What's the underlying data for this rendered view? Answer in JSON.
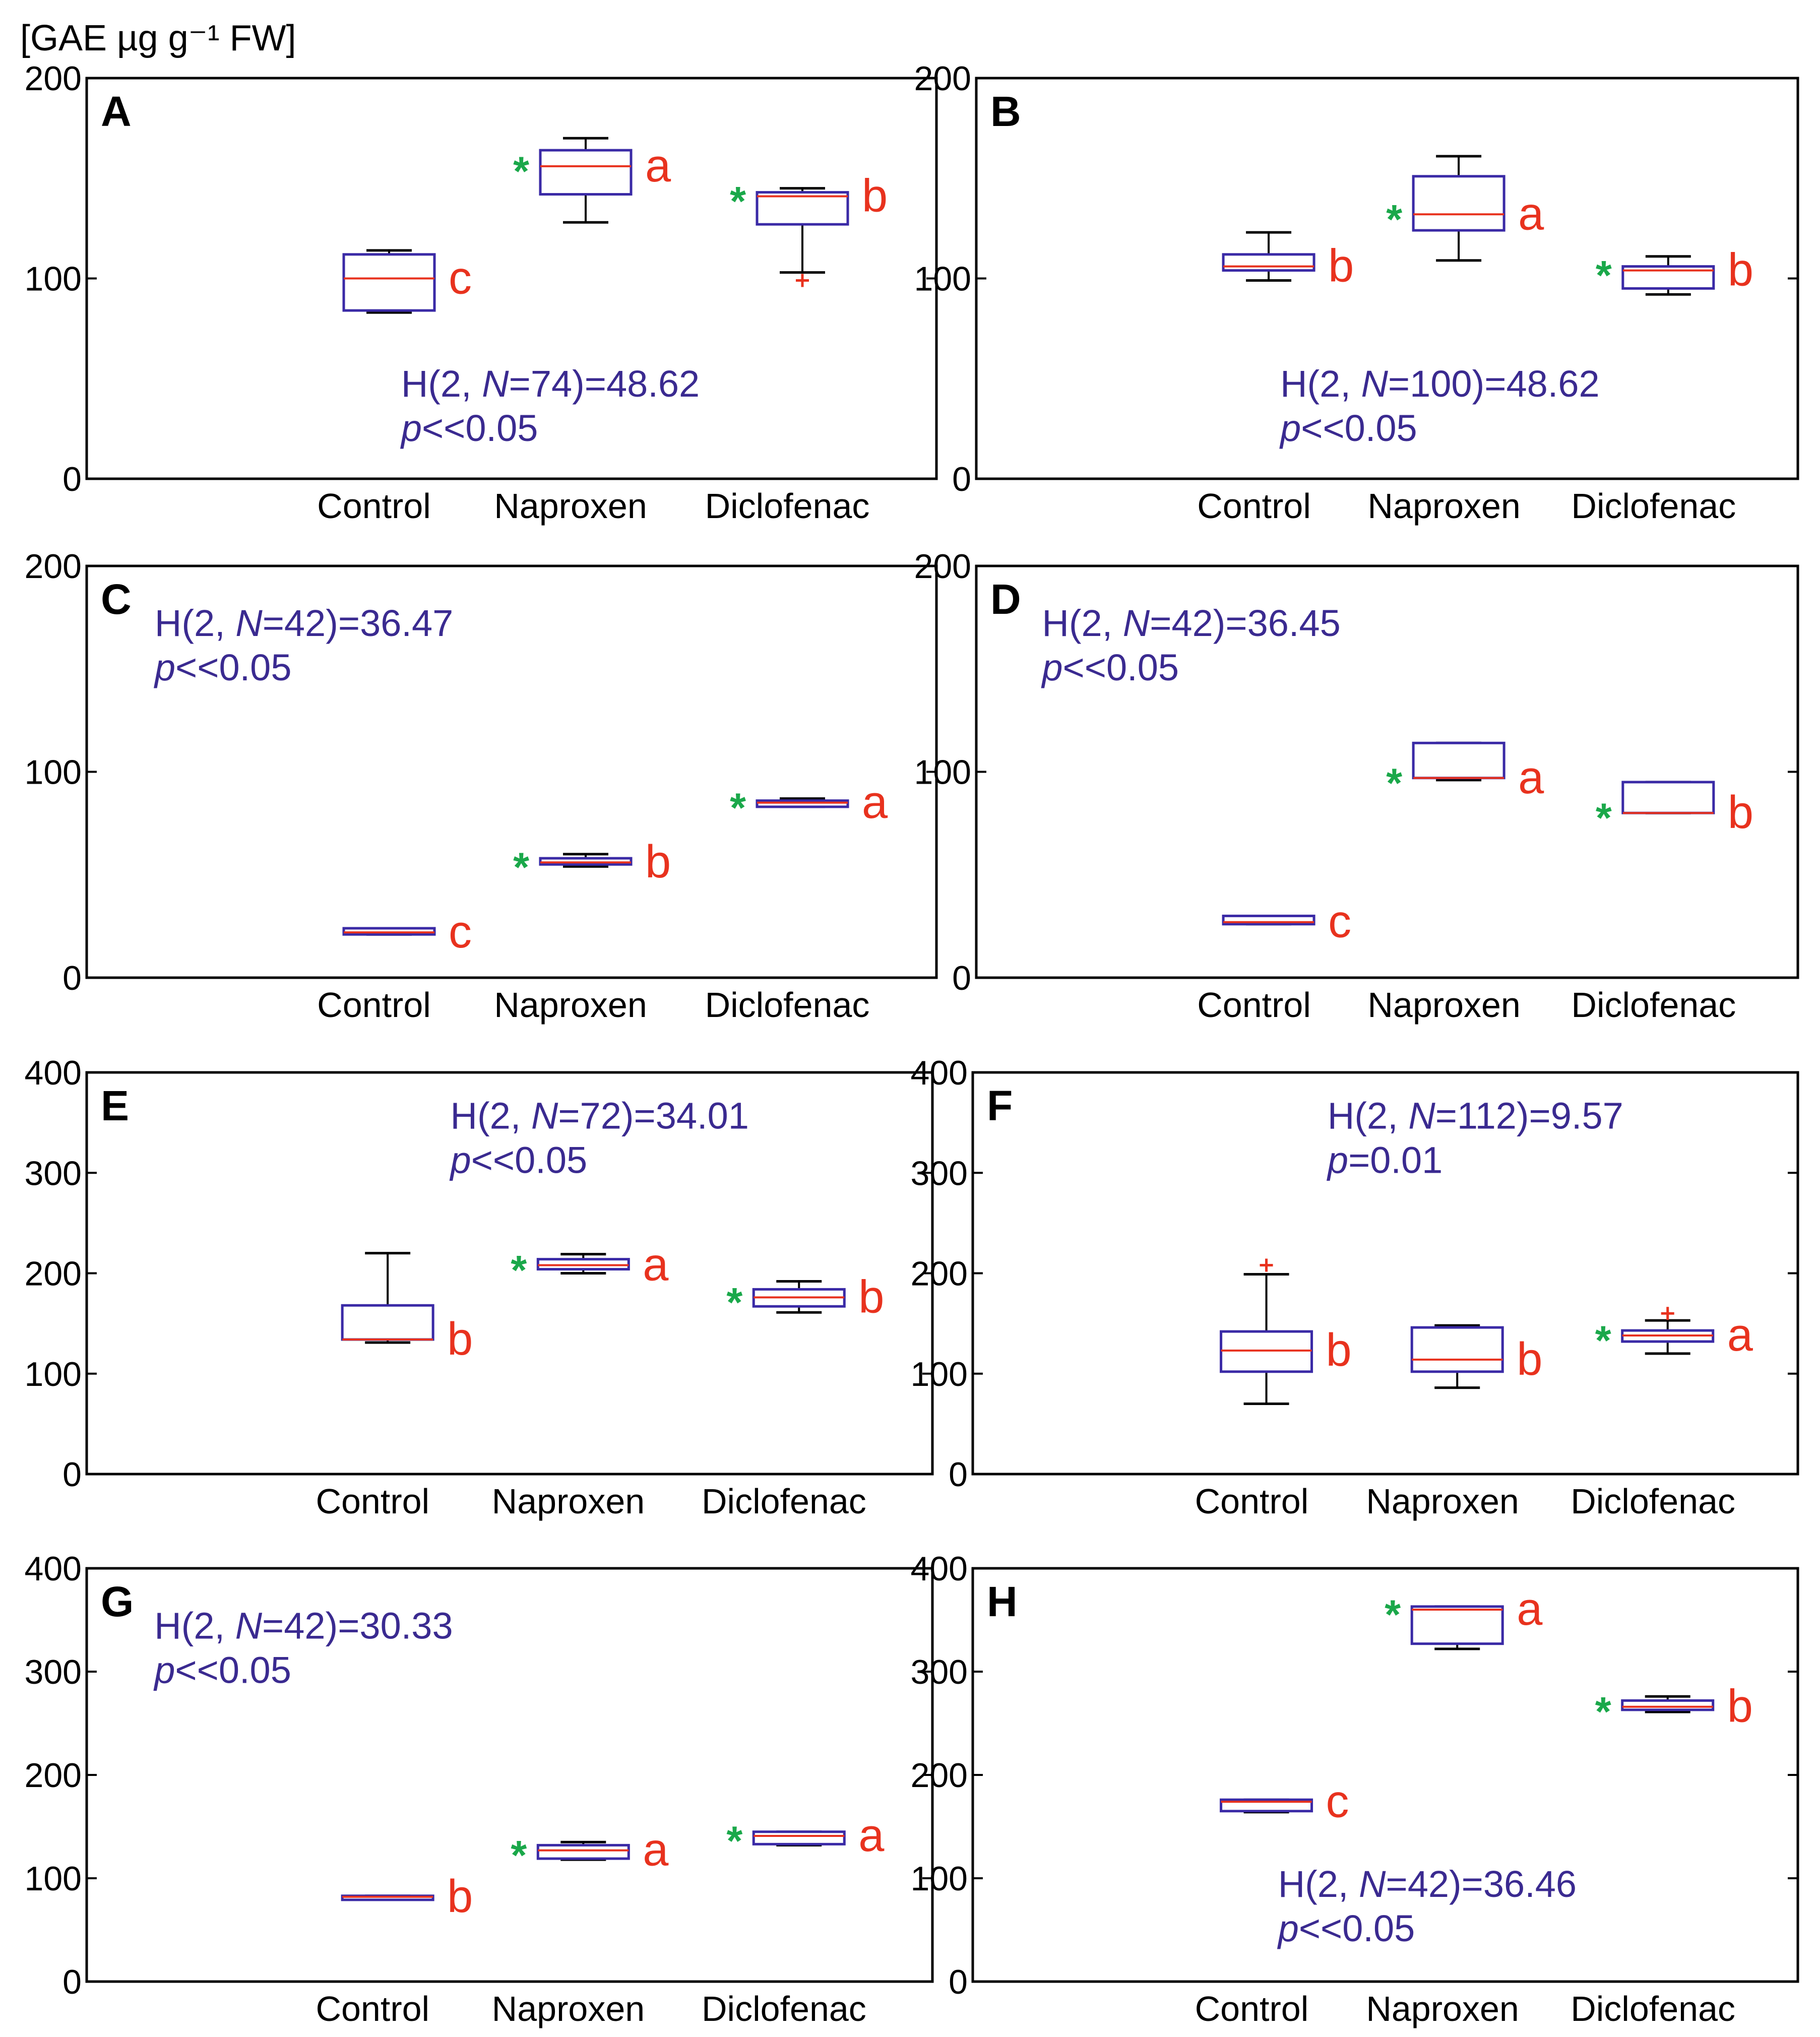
{
  "y_unit_label": "[GAE µg g⁻¹ FW]",
  "colors": {
    "box": "#3a2aa6",
    "median": "#e8321e",
    "whisker": "#000000",
    "letter": "#e8321e",
    "star": "#1aa84a",
    "stat": "#3a2a90",
    "frame": "#000000"
  },
  "chart_data": [
    {
      "type": "box",
      "panel": "A",
      "categories": [
        "Control",
        "Naproxen",
        "Diclofenac"
      ],
      "ylim": [
        0,
        200
      ],
      "yticks": [
        0,
        100,
        200
      ],
      "stat_line1_pre": "H(2, ",
      "stat_line1_n": "N",
      "stat_line1_post": "=74)=48.62",
      "stat_line2_p": "p",
      "stat_line2_post": "<<0.05",
      "stat_position": "bottom-right",
      "boxes": [
        {
          "min": 83,
          "q1": 84,
          "median": 100,
          "q3": 112,
          "max": 114,
          "outliers": [],
          "letter": "c",
          "star": false
        },
        {
          "min": 128,
          "q1": 142,
          "median": 156,
          "q3": 164,
          "max": 170,
          "outliers": [],
          "letter": "a",
          "star": true
        },
        {
          "min": 103,
          "q1": 127,
          "median": 141,
          "q3": 143,
          "max": 145,
          "outliers": [
            99
          ],
          "letter": "b",
          "star": true
        }
      ]
    },
    {
      "type": "box",
      "panel": "B",
      "categories": [
        "Control",
        "Naproxen",
        "Diclofenac"
      ],
      "ylim": [
        0,
        200
      ],
      "yticks": [
        0,
        100,
        200
      ],
      "stat_line1_pre": "H(2, ",
      "stat_line1_n": "N",
      "stat_line1_post": "=100)=48.62",
      "stat_line2_p": "p",
      "stat_line2_post": "<<0.05",
      "stat_position": "bottom-right",
      "boxes": [
        {
          "min": 99,
          "q1": 104,
          "median": 106,
          "q3": 112,
          "max": 123,
          "outliers": [],
          "letter": "b",
          "star": false
        },
        {
          "min": 109,
          "q1": 124,
          "median": 132,
          "q3": 151,
          "max": 161,
          "outliers": [],
          "letter": "a",
          "star": true
        },
        {
          "min": 92,
          "q1": 95,
          "median": 104,
          "q3": 106,
          "max": 111,
          "outliers": [],
          "letter": "b",
          "star": true
        }
      ]
    },
    {
      "type": "box",
      "panel": "C",
      "categories": [
        "Control",
        "Naproxen",
        "Diclofenac"
      ],
      "ylim": [
        0,
        200
      ],
      "yticks": [
        0,
        100,
        200
      ],
      "stat_line1_pre": "H(2, ",
      "stat_line1_n": "N",
      "stat_line1_post": "=42)=36.47",
      "stat_line2_p": "p",
      "stat_line2_post": "<<0.05",
      "stat_position": "top-left",
      "boxes": [
        {
          "min": 21,
          "q1": 21,
          "median": 22,
          "q3": 24,
          "max": 24,
          "outliers": [],
          "letter": "c",
          "star": false
        },
        {
          "min": 54,
          "q1": 55,
          "median": 56,
          "q3": 58,
          "max": 60,
          "outliers": [],
          "letter": "b",
          "star": true
        },
        {
          "min": 83,
          "q1": 83,
          "median": 85,
          "q3": 86,
          "max": 87,
          "outliers": [],
          "letter": "a",
          "star": true
        }
      ]
    },
    {
      "type": "box",
      "panel": "D",
      "categories": [
        "Control",
        "Naproxen",
        "Diclofenac"
      ],
      "ylim": [
        0,
        200
      ],
      "yticks": [
        0,
        100,
        200
      ],
      "stat_line1_pre": "H(2, ",
      "stat_line1_n": "N",
      "stat_line1_post": "=42)=36.45",
      "stat_line2_p": "p",
      "stat_line2_post": "<<0.05",
      "stat_position": "top-left",
      "boxes": [
        {
          "min": 26,
          "q1": 26,
          "median": 27,
          "q3": 30,
          "max": 30,
          "outliers": [],
          "letter": "c",
          "star": false
        },
        {
          "min": 96,
          "q1": 97,
          "median": 97,
          "q3": 114,
          "max": 114,
          "outliers": [],
          "letter": "a",
          "star": true
        },
        {
          "min": 80,
          "q1": 80,
          "median": 80,
          "q3": 95,
          "max": 95,
          "outliers": [],
          "letter": "b",
          "star": true
        }
      ]
    },
    {
      "type": "box",
      "panel": "E",
      "categories": [
        "Control",
        "Naproxen",
        "Diclofenac"
      ],
      "ylim": [
        0,
        400
      ],
      "yticks": [
        0,
        100,
        200,
        300,
        400
      ],
      "stat_line1_pre": "H(2, ",
      "stat_line1_n": "N",
      "stat_line1_post": "=72)=34.01",
      "stat_line2_p": "p",
      "stat_line2_post": "<<0.05",
      "stat_position": "top-right",
      "boxes": [
        {
          "min": 131,
          "q1": 134,
          "median": 134,
          "q3": 168,
          "max": 220,
          "outliers": [],
          "letter": "b",
          "star": false
        },
        {
          "min": 200,
          "q1": 204,
          "median": 208,
          "q3": 214,
          "max": 219,
          "outliers": [],
          "letter": "a",
          "star": true
        },
        {
          "min": 161,
          "q1": 167,
          "median": 176,
          "q3": 184,
          "max": 192,
          "outliers": [],
          "letter": "b",
          "star": true
        }
      ]
    },
    {
      "type": "box",
      "panel": "F",
      "categories": [
        "Control",
        "Naproxen",
        "Diclofenac"
      ],
      "ylim": [
        0,
        400
      ],
      "yticks": [
        0,
        100,
        200,
        300,
        400
      ],
      "stat_line1_pre": "H(2, ",
      "stat_line1_n": "N",
      "stat_line1_post": "=112)=9.57",
      "stat_line2_p": "p",
      "stat_line2_post": "=0.01",
      "stat_position": "top-right",
      "boxes": [
        {
          "min": 70,
          "q1": 102,
          "median": 123,
          "q3": 142,
          "max": 199,
          "outliers": [
            208
          ],
          "letter": "b",
          "star": false
        },
        {
          "min": 86,
          "q1": 102,
          "median": 114,
          "q3": 146,
          "max": 148,
          "outliers": [],
          "letter": "b",
          "star": false
        },
        {
          "min": 120,
          "q1": 132,
          "median": 138,
          "q3": 143,
          "max": 153,
          "outliers": [
            160
          ],
          "letter": "a",
          "star": true
        }
      ]
    },
    {
      "type": "box",
      "panel": "G",
      "categories": [
        "Control",
        "Naproxen",
        "Diclofenac"
      ],
      "ylim": [
        0,
        400
      ],
      "yticks": [
        0,
        100,
        200,
        300,
        400
      ],
      "stat_line1_pre": "H(2, ",
      "stat_line1_n": "N",
      "stat_line1_post": "=42)=30.33",
      "stat_line2_p": "p",
      "stat_line2_post": "<<0.05",
      "stat_position": "top-left",
      "boxes": [
        {
          "min": 81,
          "q1": 81,
          "median": 82,
          "q3": 83,
          "max": 83,
          "outliers": [],
          "letter": "b",
          "star": false
        },
        {
          "min": 118,
          "q1": 119,
          "median": 127,
          "q3": 132,
          "max": 135,
          "outliers": [],
          "letter": "a",
          "star": true
        },
        {
          "min": 132,
          "q1": 133,
          "median": 141,
          "q3": 145,
          "max": 145,
          "outliers": [],
          "letter": "a",
          "star": true
        }
      ]
    },
    {
      "type": "box",
      "panel": "H",
      "categories": [
        "Control",
        "Naproxen",
        "Diclofenac"
      ],
      "ylim": [
        0,
        400
      ],
      "yticks": [
        0,
        100,
        200,
        300,
        400
      ],
      "stat_line1_pre": "H(2, ",
      "stat_line1_n": "N",
      "stat_line1_post": "=42)=36.46",
      "stat_line2_p": "p",
      "stat_line2_post": "<<0.05",
      "stat_position": "bottom-right",
      "boxes": [
        {
          "min": 164,
          "q1": 165,
          "median": 174,
          "q3": 176,
          "max": 176,
          "outliers": [],
          "letter": "c",
          "star": false
        },
        {
          "min": 322,
          "q1": 327,
          "median": 360,
          "q3": 363,
          "max": 363,
          "outliers": [],
          "letter": "a",
          "star": true
        },
        {
          "min": 261,
          "q1": 263,
          "median": 266,
          "q3": 272,
          "max": 276,
          "outliers": [],
          "letter": "b",
          "star": true
        }
      ]
    }
  ]
}
